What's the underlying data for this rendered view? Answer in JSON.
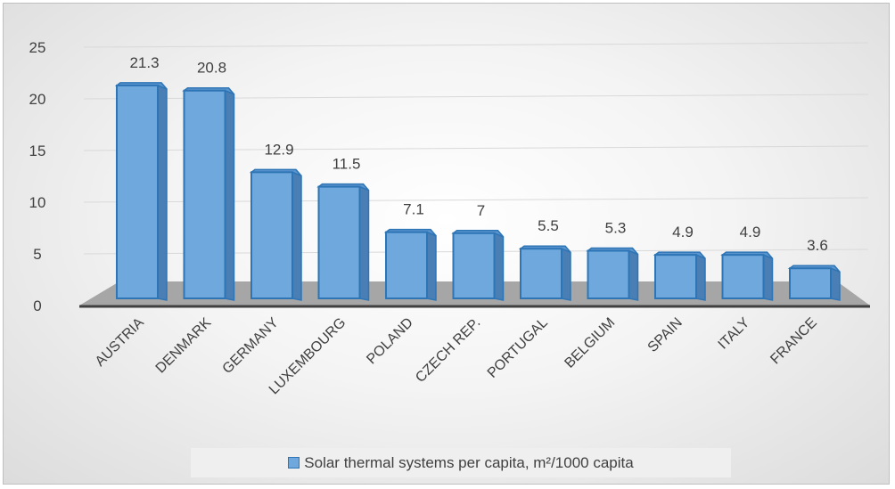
{
  "chart_data": {
    "type": "bar",
    "categories": [
      "AUSTRIA",
      "DENMARK",
      "GERMANY",
      "LUXEMBOURG",
      "POLAND",
      "CZECH REP.",
      "PORTUGAL",
      "BELGIUM",
      "SPAIN",
      "ITALY",
      "FRANCE"
    ],
    "series": [
      {
        "name": "Solar thermal systems per capita, m²/1000 capita",
        "values": [
          21.3,
          20.8,
          12.9,
          11.5,
          7.1,
          7,
          5.5,
          5.3,
          4.9,
          4.9,
          3.6
        ]
      }
    ],
    "data_labels": [
      "21.3",
      "20.8",
      "12.9",
      "11.5",
      "7.1",
      "7",
      "5.5",
      "5.3",
      "4.9",
      "4.9",
      "3.6"
    ],
    "y_ticks": [
      "0",
      "5",
      "10",
      "15",
      "20",
      "25"
    ],
    "ylim": [
      0,
      25
    ],
    "title": "",
    "xlabel": "",
    "ylabel": "",
    "legend_position": "bottom",
    "grid": true,
    "colors": {
      "bar_front": "#6fa8dc",
      "bar_edge": "#2e75b6",
      "bar_side": "#4a7fb5",
      "floor": "#a6a6a6",
      "axis": "#404040"
    }
  }
}
